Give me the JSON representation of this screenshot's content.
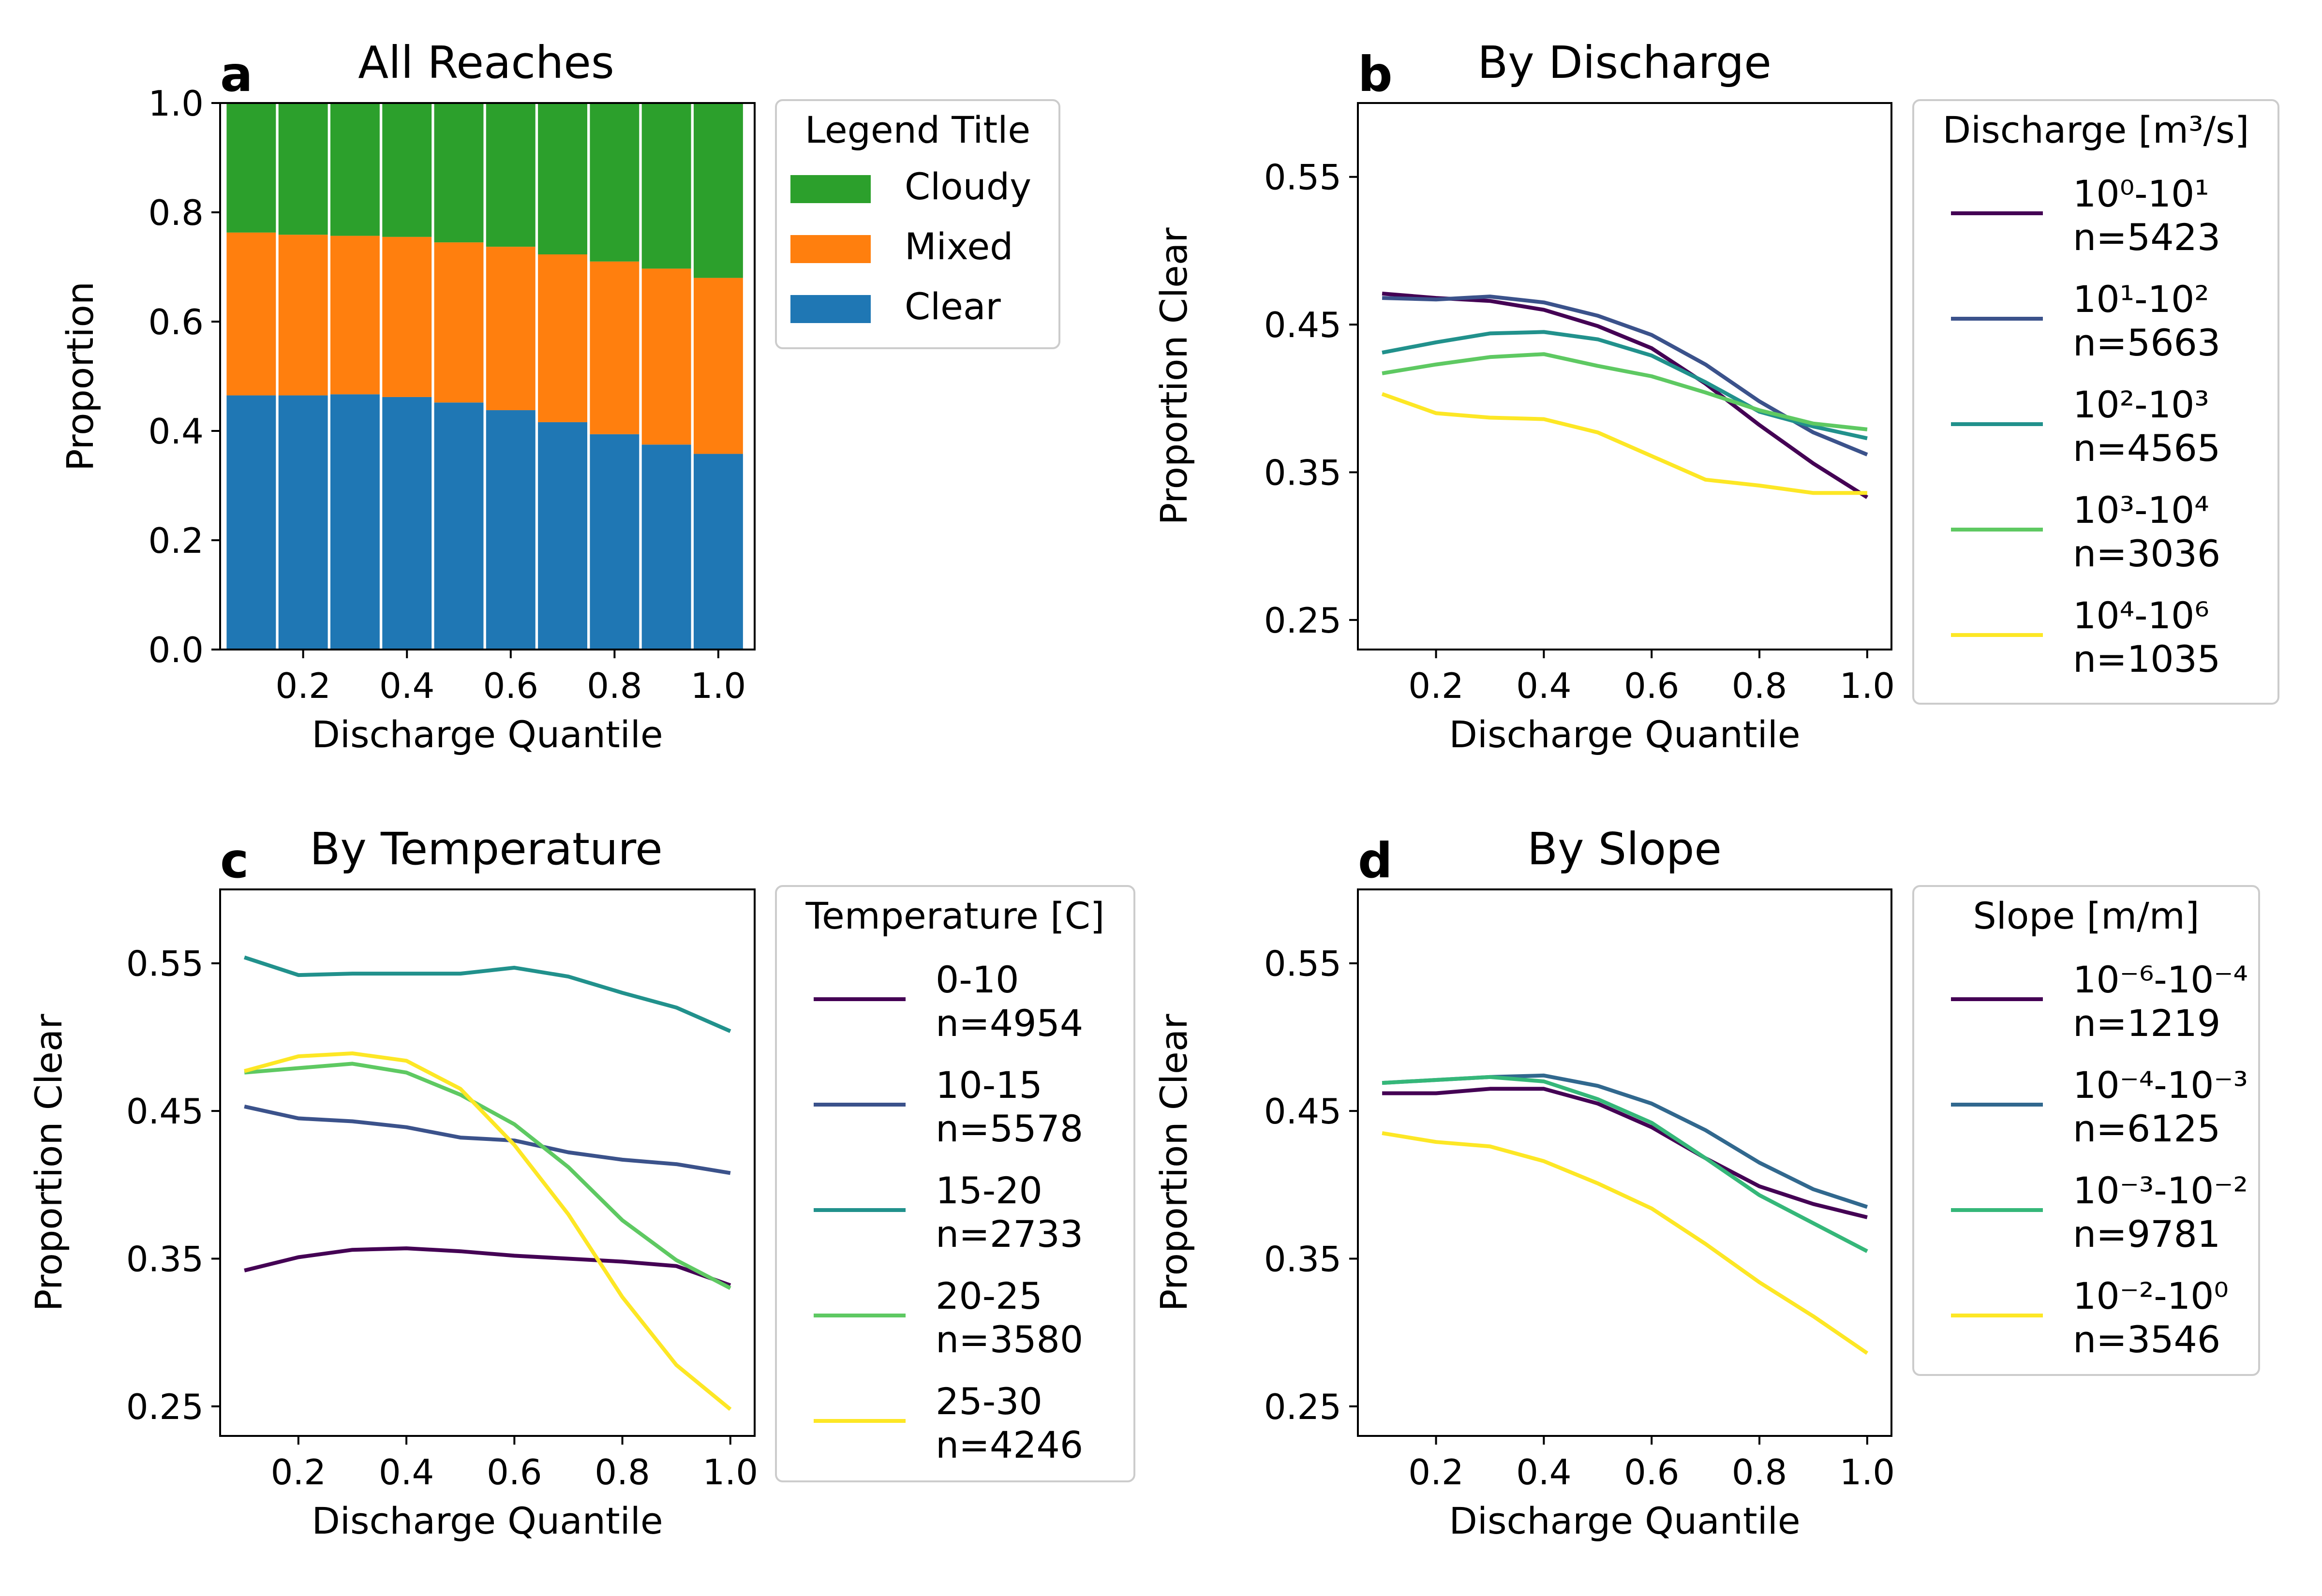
{
  "chart_data": [
    {
      "type": "bar",
      "stacked": true,
      "letter": "a",
      "title": "All Reaches",
      "xlabel": "Discharge Quantile",
      "ylabel": "Proportion",
      "xticks": [
        0.2,
        0.4,
        0.6,
        0.8,
        1.0
      ],
      "ytick_labels": [
        "0.0",
        "0.2",
        "0.4",
        "0.6",
        "0.8",
        "1.0"
      ],
      "ylim": [
        0.0,
        1.0
      ],
      "xlim": [
        0.04,
        1.07
      ],
      "categories": [
        0.1,
        0.2,
        0.3,
        0.4,
        0.5,
        0.6,
        0.7,
        0.8,
        0.9,
        1.0
      ],
      "bar_width": 0.095,
      "grid": false,
      "legend": {
        "title": "Legend Title",
        "placement": "outside-right",
        "entries": [
          "Cloudy",
          "Mixed",
          "Clear"
        ]
      },
      "series": [
        {
          "name": "Clear",
          "color": "#1f77b4",
          "values": [
            0.465,
            0.465,
            0.467,
            0.462,
            0.452,
            0.438,
            0.416,
            0.394,
            0.375,
            0.358
          ]
        },
        {
          "name": "Mixed",
          "color": "#ff7f0e",
          "values": [
            0.298,
            0.294,
            0.29,
            0.293,
            0.293,
            0.299,
            0.307,
            0.316,
            0.322,
            0.322
          ]
        },
        {
          "name": "Cloudy",
          "color": "#2ca02c",
          "values": [
            0.237,
            0.241,
            0.243,
            0.245,
            0.255,
            0.263,
            0.277,
            0.29,
            0.303,
            0.32
          ]
        }
      ]
    },
    {
      "type": "line",
      "letter": "b",
      "title": "By Discharge",
      "xlabel": "Discharge Quantile",
      "ylabel": "Proportion Clear",
      "xticks": [
        0.2,
        0.4,
        0.6,
        0.8,
        1.0
      ],
      "ytick_labels": [
        "0.25",
        "0.35",
        "0.45",
        "0.55"
      ],
      "ylim": [
        0.23,
        0.6
      ],
      "xlim": [
        0.055,
        1.045
      ],
      "grid": false,
      "legend": {
        "title": "Discharge [m³/s]",
        "placement": "outside-right",
        "entries": [
          {
            "label": "10⁰-10¹",
            "n": "n=5423"
          },
          {
            "label": "10¹-10²",
            "n": "n=5663"
          },
          {
            "label": "10²-10³",
            "n": "n=4565"
          },
          {
            "label": "10³-10⁴",
            "n": "n=3036"
          },
          {
            "label": "10⁴-10⁶",
            "n": "n=1035"
          }
        ]
      },
      "x": [
        0.1,
        0.2,
        0.3,
        0.4,
        0.5,
        0.6,
        0.7,
        0.8,
        0.9,
        1.0
      ],
      "series": [
        {
          "color": "#440154",
          "values": [
            0.471,
            0.468,
            0.466,
            0.46,
            0.449,
            0.434,
            0.41,
            0.382,
            0.356,
            0.333
          ]
        },
        {
          "color": "#3b528b",
          "values": [
            0.468,
            0.467,
            0.469,
            0.465,
            0.456,
            0.443,
            0.423,
            0.398,
            0.377,
            0.362
          ]
        },
        {
          "color": "#21918c",
          "values": [
            0.431,
            0.438,
            0.444,
            0.445,
            0.44,
            0.429,
            0.411,
            0.391,
            0.381,
            0.373
          ]
        },
        {
          "color": "#5ec962",
          "values": [
            0.417,
            0.423,
            0.428,
            0.43,
            0.422,
            0.415,
            0.404,
            0.392,
            0.383,
            0.379
          ]
        },
        {
          "color": "#fde725",
          "values": [
            0.403,
            0.39,
            0.387,
            0.386,
            0.377,
            0.361,
            0.345,
            0.341,
            0.336,
            0.336
          ]
        }
      ]
    },
    {
      "type": "line",
      "letter": "c",
      "title": "By Temperature",
      "xlabel": "Discharge Quantile",
      "ylabel": "Proportion Clear",
      "xticks": [
        0.2,
        0.4,
        0.6,
        0.8,
        1.0
      ],
      "ytick_labels": [
        "0.25",
        "0.35",
        "0.45",
        "0.55"
      ],
      "ylim": [
        0.23,
        0.6
      ],
      "xlim": [
        0.055,
        1.045
      ],
      "grid": false,
      "legend": {
        "title": "Temperature [C]",
        "placement": "outside-right",
        "entries": [
          {
            "label": "0-10",
            "n": "n=4954"
          },
          {
            "label": "10-15",
            "n": "n=5578"
          },
          {
            "label": "15-20",
            "n": "n=2733"
          },
          {
            "label": "20-25",
            "n": "n=3580"
          },
          {
            "label": "25-30",
            "n": "n=4246"
          }
        ]
      },
      "x": [
        0.1,
        0.2,
        0.3,
        0.4,
        0.5,
        0.6,
        0.7,
        0.8,
        0.9,
        1.0
      ],
      "series": [
        {
          "color": "#440154",
          "values": [
            0.342,
            0.351,
            0.356,
            0.357,
            0.355,
            0.352,
            0.35,
            0.348,
            0.345,
            0.332
          ]
        },
        {
          "color": "#3b528b",
          "values": [
            0.453,
            0.445,
            0.443,
            0.439,
            0.432,
            0.43,
            0.422,
            0.417,
            0.414,
            0.408
          ]
        },
        {
          "color": "#21918c",
          "values": [
            0.554,
            0.542,
            0.543,
            0.543,
            0.543,
            0.547,
            0.541,
            0.53,
            0.52,
            0.504
          ]
        },
        {
          "color": "#5ec962",
          "values": [
            0.476,
            0.479,
            0.482,
            0.476,
            0.461,
            0.441,
            0.412,
            0.376,
            0.349,
            0.33
          ]
        },
        {
          "color": "#fde725",
          "values": [
            0.477,
            0.487,
            0.489,
            0.484,
            0.465,
            0.427,
            0.38,
            0.324,
            0.278,
            0.248
          ]
        }
      ]
    },
    {
      "type": "line",
      "letter": "d",
      "title": "By Slope",
      "xlabel": "Discharge Quantile",
      "ylabel": "Proportion Clear",
      "xticks": [
        0.2,
        0.4,
        0.6,
        0.8,
        1.0
      ],
      "ytick_labels": [
        "0.25",
        "0.35",
        "0.45",
        "0.55"
      ],
      "ylim": [
        0.23,
        0.6
      ],
      "xlim": [
        0.055,
        1.045
      ],
      "grid": false,
      "legend": {
        "title": "Slope [m/m]",
        "placement": "outside-right",
        "entries": [
          {
            "label": "10⁻⁶-10⁻⁴",
            "n": "n=1219"
          },
          {
            "label": "10⁻⁴-10⁻³",
            "n": "n=6125"
          },
          {
            "label": "10⁻³-10⁻²",
            "n": "n=9781"
          },
          {
            "label": "10⁻²-10⁰",
            "n": "n=3546"
          }
        ]
      },
      "x": [
        0.1,
        0.2,
        0.3,
        0.4,
        0.5,
        0.6,
        0.7,
        0.8,
        0.9,
        1.0
      ],
      "series": [
        {
          "color": "#440154",
          "values": [
            0.462,
            0.462,
            0.465,
            0.465,
            0.455,
            0.439,
            0.418,
            0.399,
            0.387,
            0.378
          ]
        },
        {
          "color": "#31688e",
          "values": [
            0.469,
            0.471,
            0.473,
            0.474,
            0.467,
            0.455,
            0.437,
            0.415,
            0.397,
            0.385
          ]
        },
        {
          "color": "#35b779",
          "values": [
            0.469,
            0.471,
            0.473,
            0.47,
            0.458,
            0.442,
            0.418,
            0.393,
            0.374,
            0.355
          ]
        },
        {
          "color": "#fde725",
          "values": [
            0.435,
            0.429,
            0.426,
            0.416,
            0.401,
            0.384,
            0.36,
            0.334,
            0.311,
            0.286
          ]
        }
      ]
    }
  ]
}
